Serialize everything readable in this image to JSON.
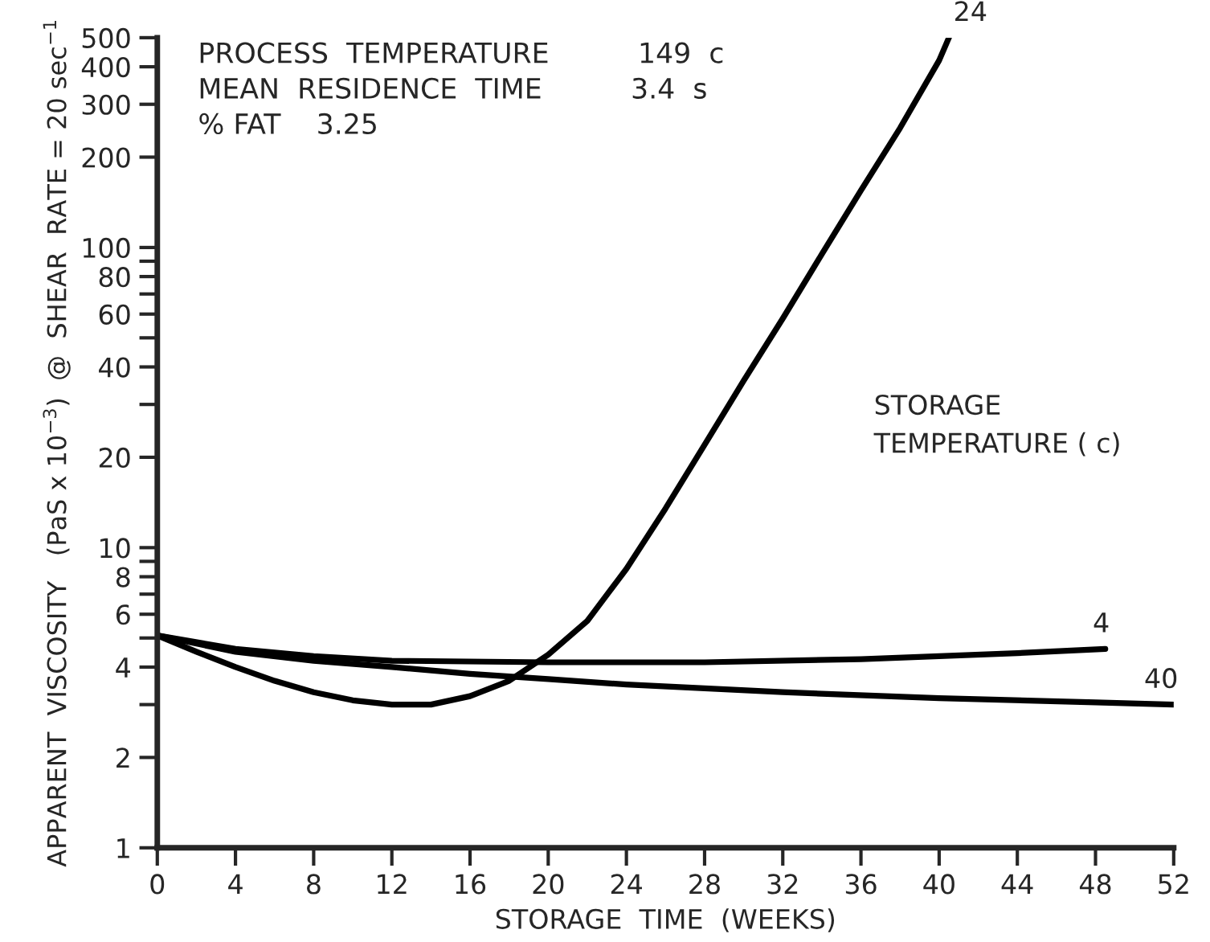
{
  "chart_data": {
    "type": "line",
    "xlabel": "STORAGE  TIME  (WEEKS)",
    "ylabel": "APPARENT  VISCOSITY   (PaS x 10$^{−3}$)  @  SHEAR  RATE = 20 sec$^{−1}$",
    "legend_title": "STORAGE\nTEMPERATURE ( c)",
    "annotations": [
      "PROCESS  TEMPERATURE          149  c\nMEAN  RESIDENCE  TIME          3.4  s\n% FAT    3.25"
    ],
    "log": "y",
    "grid": false,
    "marker": "none",
    "line_style": "solid",
    "xlim": [
      0,
      52
    ],
    "xticks": [
      0,
      4,
      8,
      12,
      16,
      20,
      24,
      28,
      32,
      36,
      40,
      44,
      48,
      52
    ],
    "ylim": [
      1,
      500
    ],
    "yticks": [
      1,
      2,
      {
        "value": 3,
        "label": null
      },
      4,
      {
        "value": 5,
        "label": null
      },
      6,
      {
        "value": 7,
        "label": null
      },
      8,
      {
        "value": 9,
        "label": null
      },
      10,
      20,
      {
        "value": 30,
        "label": null
      },
      40,
      {
        "value": 50,
        "label": null
      },
      60,
      {
        "value": 70,
        "label": null
      },
      80,
      {
        "value": 90,
        "label": null
      },
      100,
      200,
      300,
      400,
      500
    ],
    "series": [
      {
        "name": "24",
        "color": "#000000",
        "x": [
          0,
          2,
          4,
          6,
          8,
          10,
          12,
          14,
          16,
          18,
          20,
          22,
          24,
          26,
          28,
          30,
          32,
          34,
          36,
          38,
          40,
          40.5
        ],
        "values": [
          5.1,
          4.5,
          4.0,
          3.6,
          3.3,
          3.1,
          3.0,
          3.0,
          3.2,
          3.6,
          4.4,
          5.7,
          8.5,
          13.5,
          22,
          36,
          58,
          95,
          155,
          250,
          420,
          500
        ]
      },
      {
        "name": "4",
        "color": "#000000",
        "x": [
          0,
          4,
          8,
          12,
          20,
          28,
          36,
          44,
          48.5
        ],
        "values": [
          5.1,
          4.6,
          4.35,
          4.2,
          4.15,
          4.15,
          4.25,
          4.45,
          4.6
        ]
      },
      {
        "name": "40",
        "color": "#000000",
        "x": [
          0,
          4,
          8,
          12,
          16,
          20,
          24,
          32,
          40,
          48,
          52
        ],
        "values": [
          5.1,
          4.5,
          4.2,
          4.0,
          3.8,
          3.65,
          3.5,
          3.3,
          3.15,
          3.05,
          3.0
        ]
      }
    ]
  }
}
